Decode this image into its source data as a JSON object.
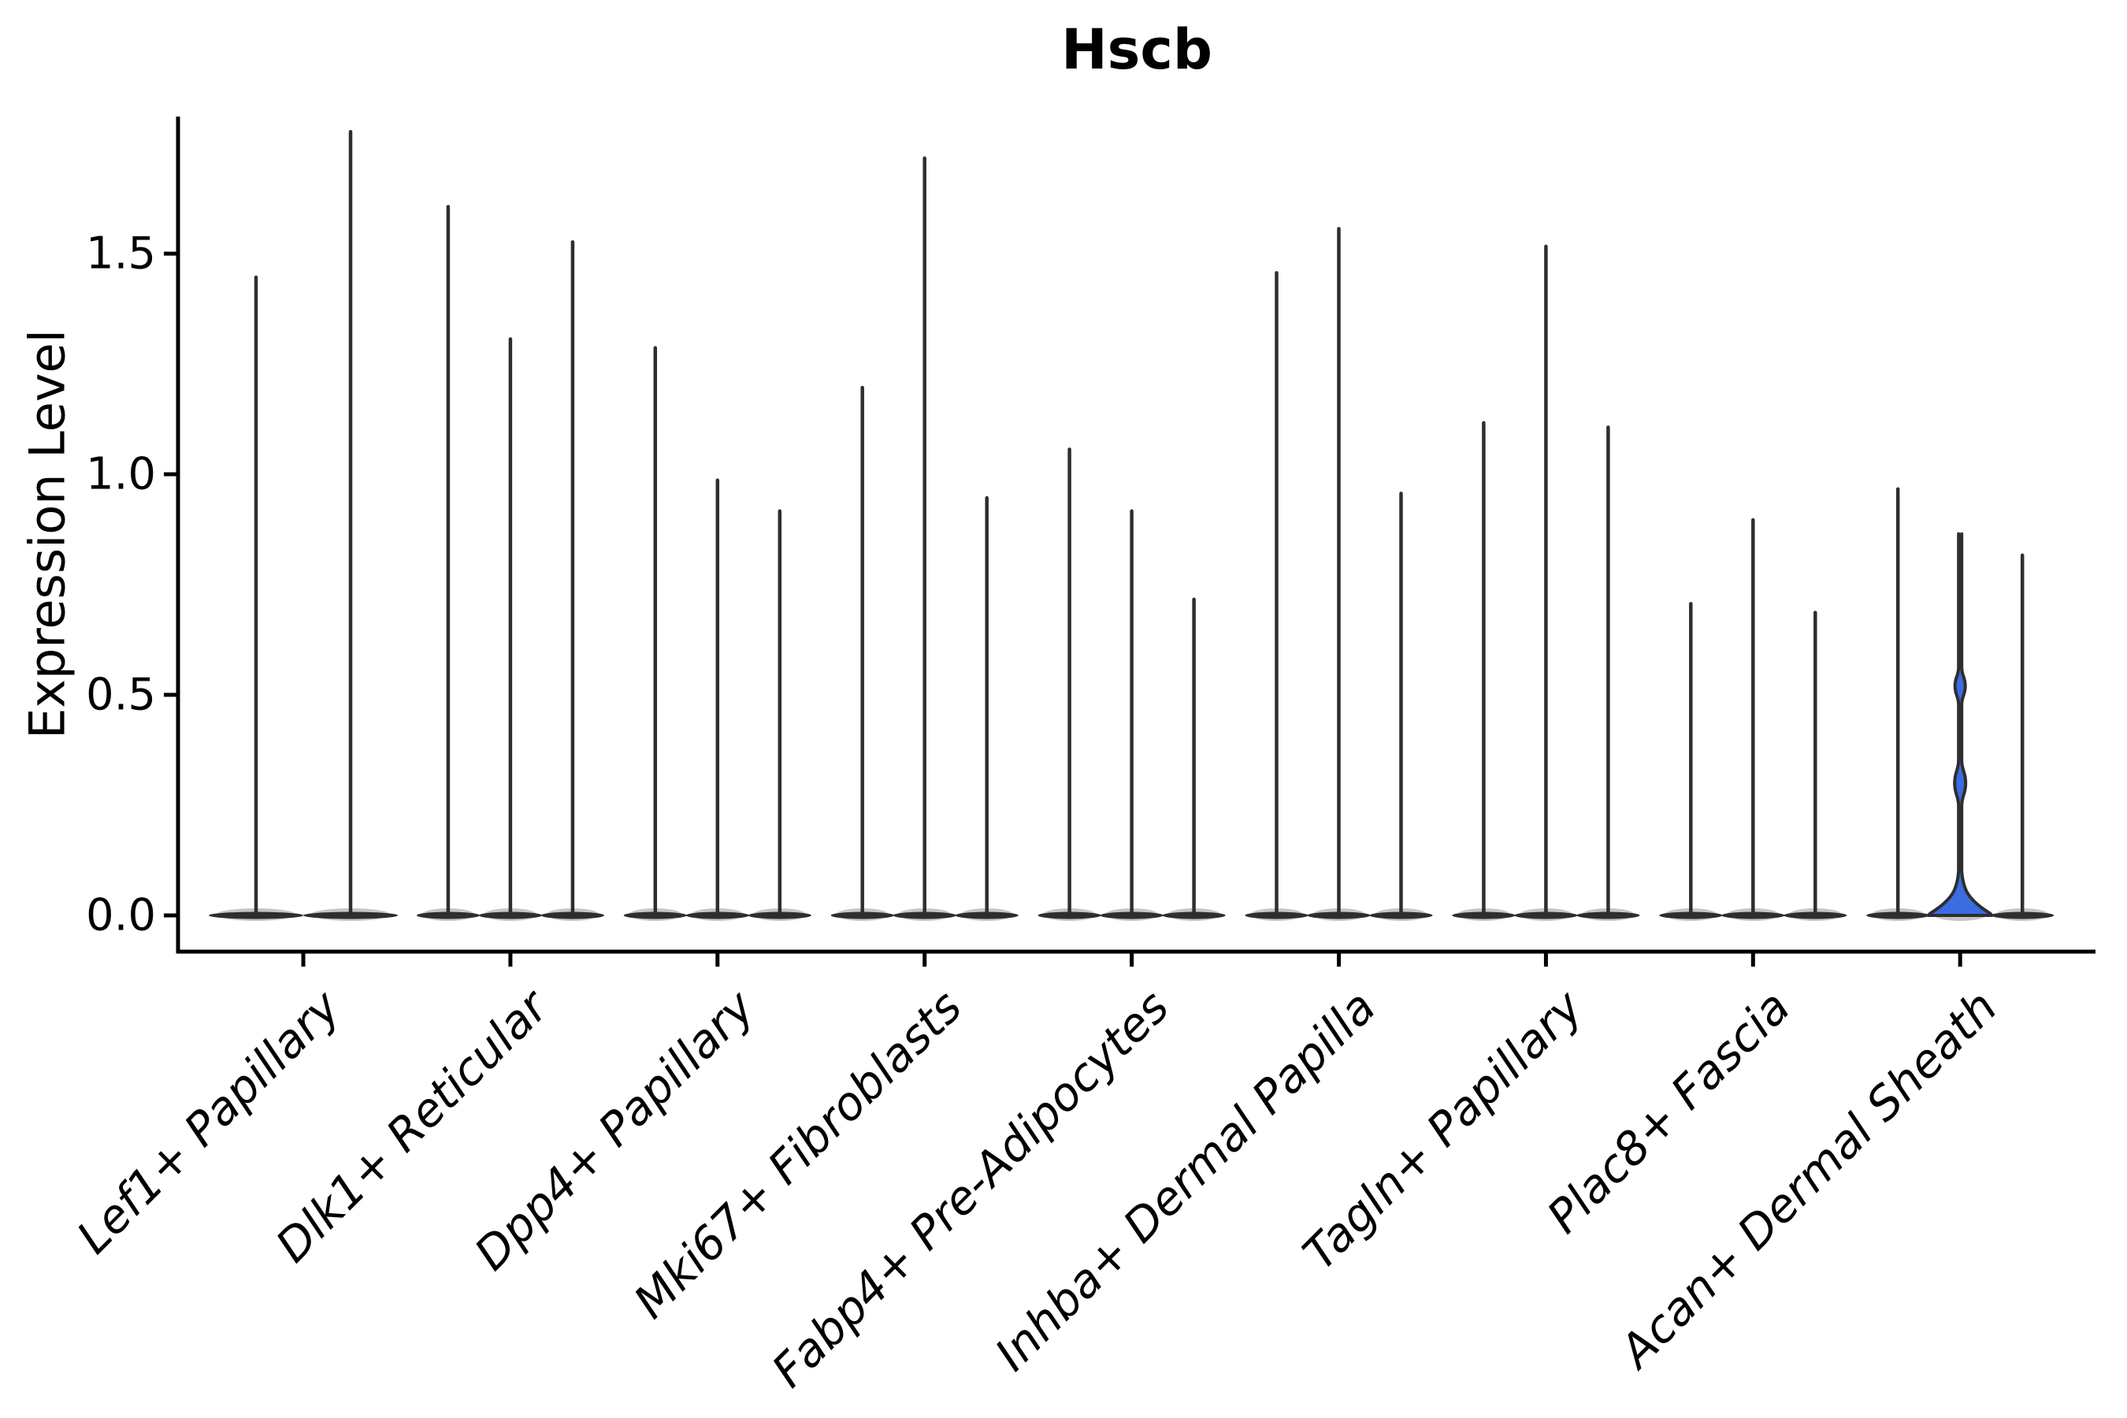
{
  "title": "Hscb",
  "axes": {
    "ylabel": "Expression Level",
    "ytick_labels": [
      "0.0",
      "0.5",
      "1.0",
      "1.5"
    ]
  },
  "chart_data": {
    "type": "violin",
    "title": "Hscb",
    "xlabel": "",
    "ylabel": "Expression Level",
    "ylim": [
      -0.08,
      1.81
    ],
    "yticks": [
      0.0,
      0.5,
      1.0,
      1.5
    ],
    "grid": false,
    "legend": "none",
    "categories": [
      "Lef1+ Papillary",
      "Dlk1+ Reticular",
      "Dpp4+ Papillary",
      "Mki67+ Fibroblasts",
      "Fabp4+ Pre-Adipocytes",
      "Inhba+ Dermal Papilla",
      "Tagln+ Papillary",
      "Plac8+ Fascia",
      "Acan+ Dermal Sheath"
    ],
    "series": [
      {
        "category": "Lef1+ Papillary",
        "violins": [
          {
            "max": 1.45
          },
          {
            "max": 1.78
          }
        ]
      },
      {
        "category": "Dlk1+ Reticular",
        "violins": [
          {
            "max": 1.61
          },
          {
            "max": 1.31
          },
          {
            "max": 1.53
          }
        ]
      },
      {
        "category": "Dpp4+ Papillary",
        "violins": [
          {
            "max": 1.29
          },
          {
            "max": 0.99
          },
          {
            "max": 0.92
          }
        ]
      },
      {
        "category": "Mki67+ Fibroblasts",
        "violins": [
          {
            "max": 1.2
          },
          {
            "max": 1.72
          },
          {
            "max": 0.95
          }
        ]
      },
      {
        "category": "Fabp4+ Pre-Adipocytes",
        "violins": [
          {
            "max": 1.06
          },
          {
            "max": 0.92
          },
          {
            "max": 0.72
          }
        ]
      },
      {
        "category": "Inhba+ Dermal Papilla",
        "violins": [
          {
            "max": 1.46
          },
          {
            "max": 1.56
          },
          {
            "max": 0.96
          }
        ]
      },
      {
        "category": "Tagln+ Papillary",
        "violins": [
          {
            "max": 1.12
          },
          {
            "max": 1.52
          },
          {
            "max": 1.11
          }
        ]
      },
      {
        "category": "Plac8+ Fascia",
        "violins": [
          {
            "max": 0.71
          },
          {
            "max": 0.9
          },
          {
            "max": 0.69
          }
        ]
      },
      {
        "category": "Acan+ Dermal Sheath",
        "violins": [
          {
            "max": 0.97
          },
          {
            "max": 0.84,
            "fill": "#3B6CE1",
            "bulges": [
              {
                "v": 0.52,
                "half_height": 0.042,
                "half_width": 6.5
              },
              {
                "v": 0.3,
                "half_height": 0.052,
                "half_width": 7.0
              }
            ],
            "bell_start_v": 0.1
          },
          {
            "max": 0.82
          }
        ]
      }
    ],
    "colors": {
      "edge": "#2e2e2e",
      "highlight_fill": "#3B6CE1",
      "background": "#ffffff"
    }
  }
}
